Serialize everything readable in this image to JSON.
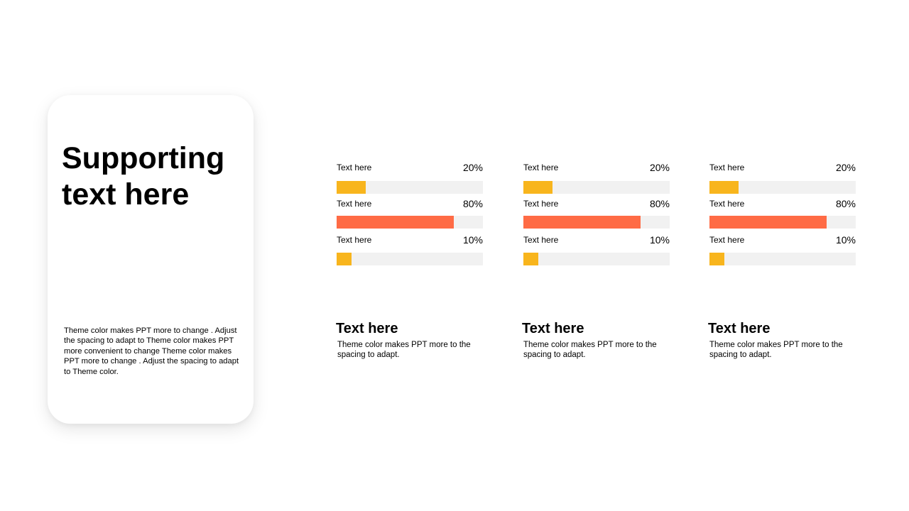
{
  "accent_colors": {
    "yellow": "#f8b51d",
    "orange": "#ff6b45",
    "track": "#f1f1f1"
  },
  "card": {
    "title": "Supporting text here",
    "body": "Theme  color makes PPT more to change . Adjust the spacing to adapt to Theme  color makes PPT more convenient to change Theme  color makes PPT more to change . Adjust the spacing to adapt to Theme  color."
  },
  "columns": [
    {
      "bars": [
        {
          "label": "Text here",
          "value_text": "20%",
          "value": 0.2,
          "color": "#f8b51d"
        },
        {
          "label": "Text here",
          "value_text": "80%",
          "value": 0.8,
          "color": "#ff6b45"
        },
        {
          "label": "Text here",
          "value_text": "10%",
          "value": 0.1,
          "color": "#f8b51d"
        }
      ],
      "caption_title": "Text here",
      "caption_body": "Theme  color makes PPT more to the spacing to adapt."
    },
    {
      "bars": [
        {
          "label": "Text here",
          "value_text": "20%",
          "value": 0.2,
          "color": "#f8b51d"
        },
        {
          "label": "Text here",
          "value_text": "80%",
          "value": 0.8,
          "color": "#ff6b45"
        },
        {
          "label": "Text here",
          "value_text": "10%",
          "value": 0.1,
          "color": "#f8b51d"
        }
      ],
      "caption_title": "Text here",
      "caption_body": "Theme  color makes PPT more to the spacing to adapt."
    },
    {
      "bars": [
        {
          "label": "Text here",
          "value_text": "20%",
          "value": 0.2,
          "color": "#f8b51d"
        },
        {
          "label": "Text here",
          "value_text": "80%",
          "value": 0.8,
          "color": "#ff6b45"
        },
        {
          "label": "Text here",
          "value_text": "10%",
          "value": 0.1,
          "color": "#f8b51d"
        }
      ],
      "caption_title": "Text here",
      "caption_body": "Theme  color makes PPT more to the spacing to adapt."
    }
  ]
}
